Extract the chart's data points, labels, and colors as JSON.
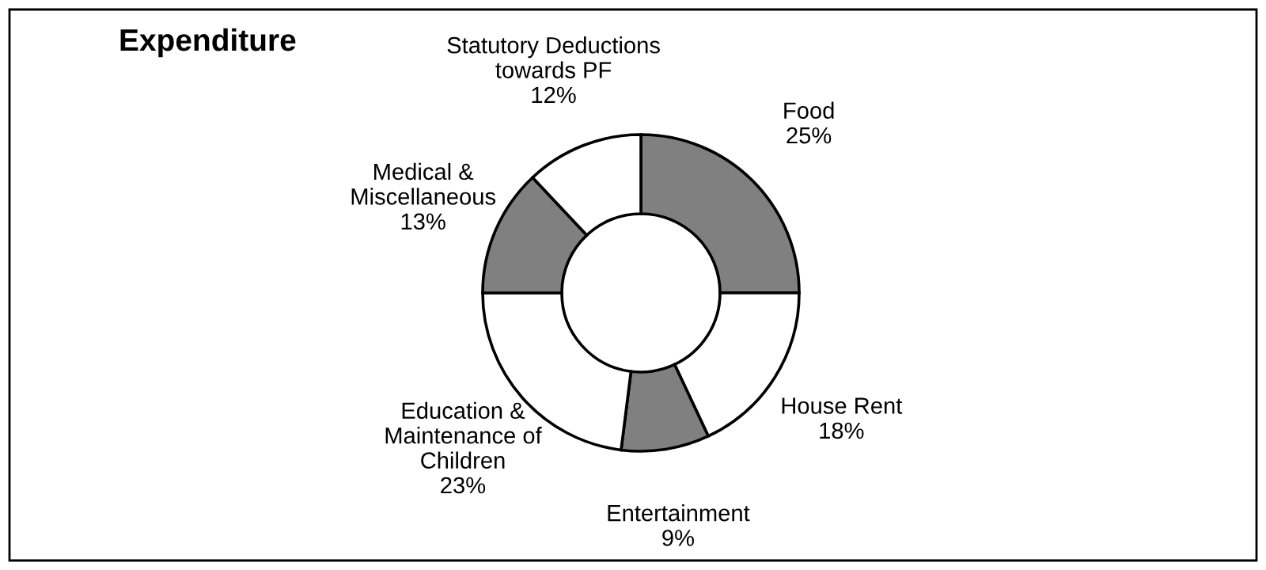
{
  "chart_data": {
    "type": "donut",
    "title": "Expenditure",
    "categories": [
      "Food",
      "House Rent",
      "Entertainment",
      "Education &\nMaintenance of\nChildren",
      "Medical &\nMiscellaneous",
      "Statutory Deductions\ntowards PF"
    ],
    "values": [
      25,
      18,
      9,
      23,
      13,
      12
    ],
    "value_labels": [
      "25%",
      "18%",
      "9%",
      "23%",
      "13%",
      "12%"
    ],
    "colors": [
      "#808080",
      "#ffffff",
      "#808080",
      "#ffffff",
      "#808080",
      "#ffffff"
    ],
    "legend": false
  }
}
